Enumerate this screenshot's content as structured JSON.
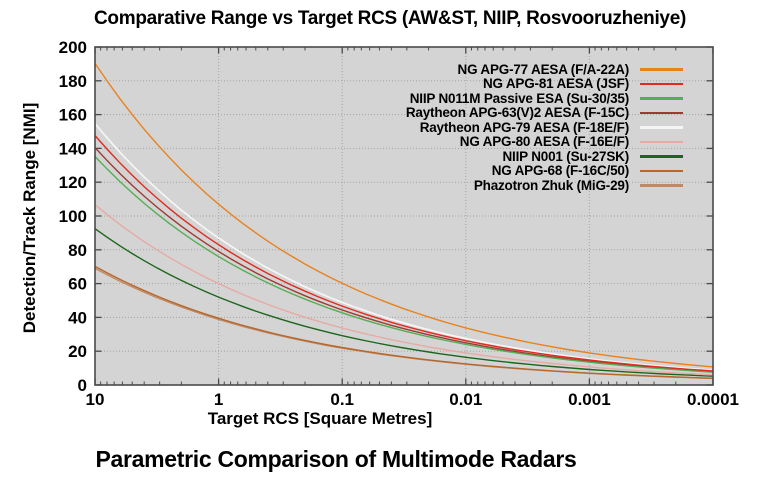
{
  "figure": {
    "top_title": "Comparative Range vs Target RCS (AW&ST, NIIP, Rosvooruzheniye)",
    "caption": "Parametric Comparison of Multimode Radars"
  },
  "chart_data": {
    "type": "line",
    "title": "Comparative Range vs Target RCS (AW&ST, NIIP, Rosvooruzheniye)",
    "caption": "Parametric Comparison of Multimode Radars",
    "xlabel": "Target RCS [Square Metres]",
    "ylabel": "Detection/Track Range [NMI]",
    "x_scale": "log10-reversed",
    "x_tick_labels": [
      "10",
      "1",
      "0.1",
      "0.01",
      "0.001",
      "0.0001"
    ],
    "x_tick_log_values": [
      1,
      0,
      -1,
      -2,
      -3,
      -4
    ],
    "y_ticks": [
      0,
      20,
      40,
      60,
      80,
      100,
      120,
      140,
      160,
      180,
      200
    ],
    "ylim": [
      0,
      200
    ],
    "grid": true,
    "legend_position": "top-right-inside",
    "relationship": "range scales as RCS^0.25",
    "colors": {
      "plot_background": "#d4d4d4",
      "grid": "#a5a5a5",
      "border": "#4a4a4a",
      "text": "#000000"
    },
    "x_anchors_rcs_m2": [
      10,
      1,
      0.1,
      0.01,
      0.001,
      0.0001
    ],
    "series": [
      {
        "name": "NG APG-77 AESA (F/A-22A)",
        "color": "#e8821e",
        "values": [
          190.3,
          107.0,
          60.2,
          33.8,
          19.0,
          10.7
        ]
      },
      {
        "name": "NG APG-81 AESA (JSF)",
        "color": "#e02b20",
        "values": [
          147.6,
          83.0,
          46.7,
          26.2,
          14.8,
          8.3
        ]
      },
      {
        "name": "NIIP N011M Passive ESA (Su-30/35)",
        "color": "#55ad55",
        "values": [
          135.2,
          76.0,
          42.7,
          24.0,
          13.5,
          7.6
        ]
      },
      {
        "name": "Raytheon APG-63(V)2 AESA (F-15C)",
        "color": "#9e3a34",
        "values": [
          140.5,
          79.0,
          44.4,
          25.0,
          14.0,
          7.9
        ]
      },
      {
        "name": "Raytheon APG-79 AESA (F-18E/F)",
        "color": "#f5f5f5",
        "values": [
          154.7,
          87.0,
          48.9,
          27.5,
          15.5,
          8.7
        ]
      },
      {
        "name": "NG APG-80 AESA (F-16E/F)",
        "color": "#e7aaa5",
        "values": [
          106.7,
          60.0,
          33.7,
          19.0,
          10.7,
          6.0
        ]
      },
      {
        "name": "NIIP N001 (Su-27SK)",
        "color": "#1c661c",
        "values": [
          92.5,
          52.0,
          29.2,
          16.4,
          9.2,
          5.2
        ]
      },
      {
        "name": "NG APG-68 (F-16C/50)",
        "color": "#b5672e",
        "values": [
          70.2,
          39.5,
          22.2,
          12.5,
          7.0,
          4.0
        ]
      },
      {
        "name": "Phazotron Zhuk (MiG-29)",
        "color": "#c28a62",
        "values": [
          69.0,
          38.8,
          21.8,
          12.3,
          6.9,
          3.9
        ]
      }
    ]
  }
}
